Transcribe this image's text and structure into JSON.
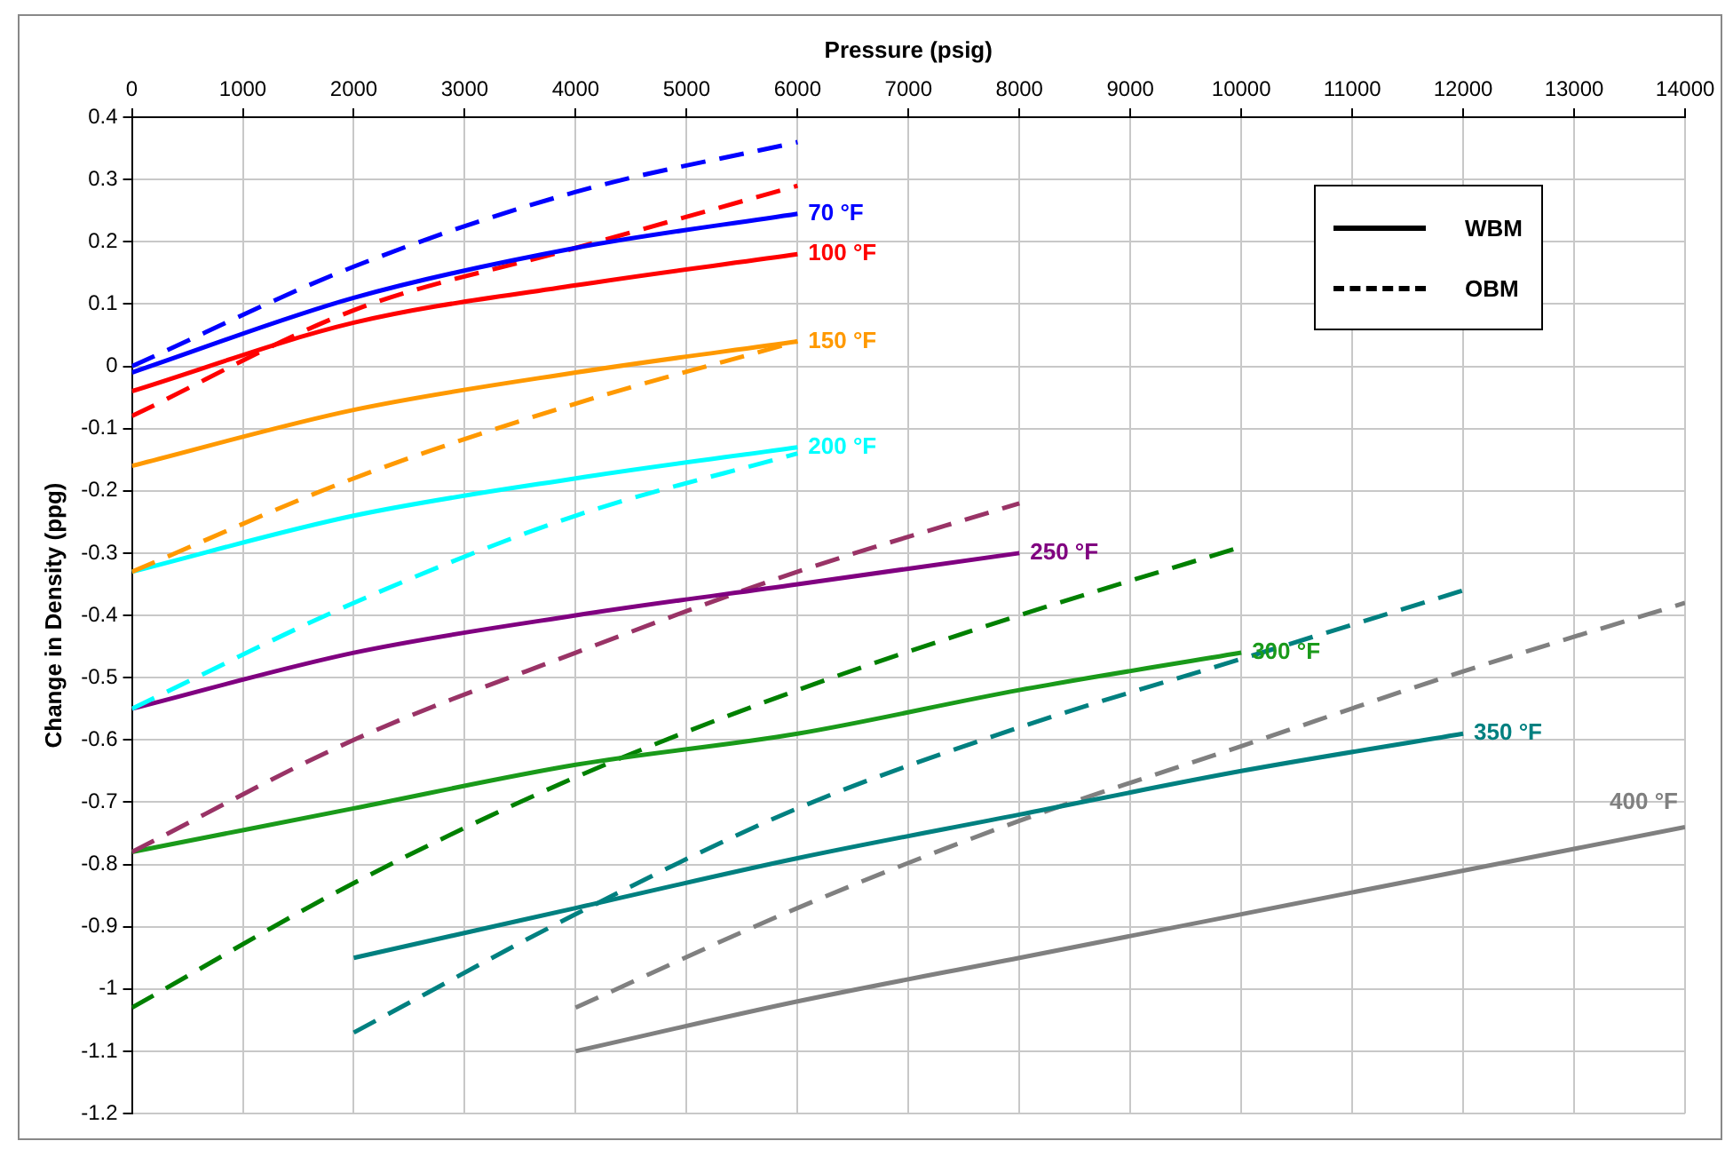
{
  "chart_data": {
    "type": "line",
    "xlabel": "Pressure (psig)",
    "ylabel": "Change in Density (ppg)",
    "xlim": [
      0,
      14000
    ],
    "xticks": [
      0,
      1000,
      2000,
      3000,
      4000,
      5000,
      6000,
      7000,
      8000,
      9000,
      10000,
      11000,
      12000,
      13000,
      14000
    ],
    "ylim": [
      -1.2,
      0.4
    ],
    "yticks": [
      0.4,
      0.3,
      0.2,
      0.1,
      0,
      -0.1,
      -0.2,
      -0.3,
      -0.4,
      -0.5,
      -0.6,
      -0.7,
      -0.8,
      -0.9,
      -1,
      -1.1,
      -1.2
    ],
    "grid": true,
    "marker": "none",
    "series": [
      {
        "name": "70 °F",
        "color": "#0000ff",
        "line_style": "solid",
        "x": [
          0,
          2000,
          4000,
          6000
        ],
        "values": [
          -0.01,
          0.11,
          0.19,
          0.245
        ]
      },
      {
        "color": "#0000ff",
        "line_style": "dashed",
        "x": [
          0,
          2000,
          4000,
          6000
        ],
        "values": [
          0.0,
          0.16,
          0.28,
          0.36
        ]
      },
      {
        "name": "100 °F",
        "color": "#ff0000",
        "line_style": "solid",
        "x": [
          0,
          2000,
          4000,
          6000
        ],
        "values": [
          -0.04,
          0.07,
          0.13,
          0.18
        ]
      },
      {
        "color": "#ff0000",
        "line_style": "dashed",
        "x": [
          0,
          2000,
          4000,
          6000
        ],
        "values": [
          -0.08,
          0.09,
          0.19,
          0.29
        ]
      },
      {
        "name": "150 °F",
        "color": "#ff9900",
        "line_style": "solid",
        "x": [
          0,
          2000,
          4000,
          6000
        ],
        "values": [
          -0.16,
          -0.07,
          -0.01,
          0.04
        ]
      },
      {
        "color": "#ff9900",
        "line_style": "dashed",
        "x": [
          0,
          2000,
          4000,
          6000
        ],
        "values": [
          -0.33,
          -0.18,
          -0.06,
          0.04
        ]
      },
      {
        "name": "200 °F",
        "color": "#00ffff",
        "line_style": "solid",
        "x": [
          0,
          2000,
          4000,
          6000
        ],
        "values": [
          -0.33,
          -0.24,
          -0.18,
          -0.13
        ]
      },
      {
        "color": "#00ffff",
        "line_style": "dashed",
        "x": [
          0,
          2000,
          4000,
          6000
        ],
        "values": [
          -0.55,
          -0.38,
          -0.24,
          -0.14
        ]
      },
      {
        "name": "250 °F",
        "color": "#800080",
        "line_style": "solid",
        "x": [
          0,
          2000,
          4000,
          6000,
          8000
        ],
        "values": [
          -0.55,
          -0.46,
          -0.4,
          -0.35,
          -0.3
        ]
      },
      {
        "color": "#993366",
        "line_style": "dashed",
        "x": [
          0,
          2000,
          4000,
          6000,
          8000
        ],
        "values": [
          -0.78,
          -0.6,
          -0.46,
          -0.33,
          -0.22
        ]
      },
      {
        "name": "300 °F",
        "color": "#1a9a1a",
        "line_style": "solid",
        "x": [
          0,
          2000,
          4000,
          6000,
          8000,
          10000
        ],
        "values": [
          -0.78,
          -0.71,
          -0.64,
          -0.59,
          -0.52,
          -0.46
        ]
      },
      {
        "color": "#008000",
        "line_style": "dashed",
        "x": [
          0,
          2000,
          4000,
          6000,
          8000,
          10000
        ],
        "values": [
          -1.03,
          -0.83,
          -0.66,
          -0.52,
          -0.4,
          -0.29
        ]
      },
      {
        "name": "350 °F",
        "color": "#008080",
        "line_style": "solid",
        "x": [
          2000,
          4000,
          6000,
          8000,
          10000,
          12000
        ],
        "values": [
          -0.95,
          -0.87,
          -0.79,
          -0.72,
          -0.65,
          -0.59
        ]
      },
      {
        "color": "#008080",
        "line_style": "dashed",
        "x": [
          2000,
          4000,
          6000,
          8000,
          10000,
          12000
        ],
        "values": [
          -1.07,
          -0.88,
          -0.71,
          -0.58,
          -0.47,
          -0.36
        ]
      },
      {
        "name": "400 °F",
        "color": "#808080",
        "line_style": "solid",
        "x": [
          4000,
          6000,
          8000,
          10000,
          12000,
          14000
        ],
        "values": [
          -1.1,
          -1.02,
          -0.95,
          -0.88,
          -0.81,
          -0.74
        ]
      },
      {
        "color": "#808080",
        "line_style": "dashed",
        "x": [
          4000,
          6000,
          8000,
          10000,
          12000,
          14000
        ],
        "values": [
          -1.03,
          -0.87,
          -0.73,
          -0.61,
          -0.49,
          -0.38
        ]
      }
    ],
    "annotations": [
      "WBM",
      "OBM"
    ]
  }
}
